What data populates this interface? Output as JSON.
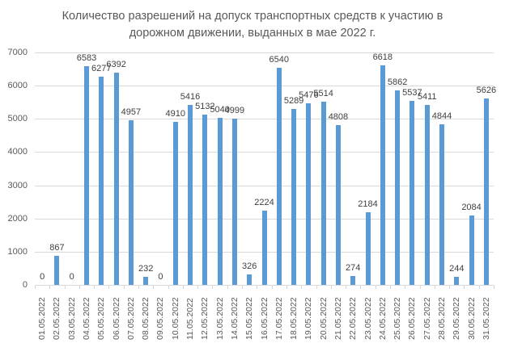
{
  "chart_data": {
    "type": "bar",
    "title": "Количество разрешений на допуск транспортных средств к участию в дорожном движении, выданных в мае 2022 г.",
    "title_lines": [
      "Количество разрешений на допуск транспортных средств к участию в",
      "дорожном движении, выданных в мае 2022 г."
    ],
    "xlabel": "",
    "ylabel": "",
    "ylim": [
      0,
      7000
    ],
    "yticks": [
      0,
      1000,
      2000,
      3000,
      4000,
      5000,
      6000,
      7000
    ],
    "grid": true,
    "legend": "none",
    "bar_color": "#5b9bd5",
    "data_labels": true,
    "categories": [
      "01.05.2022",
      "02.05.2022",
      "03.05.2022",
      "04.05.2022",
      "05.05.2022",
      "06.05.2022",
      "07.05.2022",
      "08.05.2022",
      "09.05.2022",
      "10.05.2022",
      "11.05.2022",
      "12.05.2022",
      "13.05.2022",
      "14.05.2022",
      "15.05.2022",
      "16.05.2022",
      "17.05.2022",
      "18.05.2022",
      "19.05.2022",
      "20.05.2022",
      "21.05.2022",
      "22.05.2022",
      "23.05.2022",
      "24.05.2022",
      "25.05.2022",
      "26.05.2022",
      "27.05.2022",
      "28.05.2022",
      "29.05.2022",
      "30.05.2022",
      "31.05.2022"
    ],
    "values": [
      0,
      867,
      0,
      6583,
      6277,
      6392,
      4957,
      232,
      0,
      4910,
      5416,
      5132,
      5040,
      4999,
      326,
      2224,
      6540,
      5289,
      5476,
      5514,
      4808,
      274,
      2184,
      6618,
      5862,
      5537,
      5411,
      4844,
      244,
      2084,
      5626
    ]
  }
}
